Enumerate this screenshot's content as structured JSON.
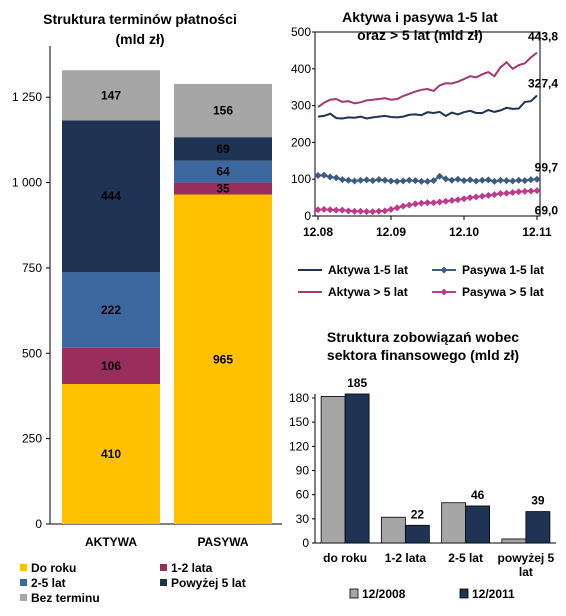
{
  "colors": {
    "do_roku": "#FFC000",
    "lata_1_2": "#9B2D5E",
    "lata_2_5": "#3D689F",
    "powyzej_5": "#1F3354",
    "bez_terminu": "#A6A6A6",
    "aktywa_1_5": "#1F3354",
    "pasywa_1_5": "#3D5A80",
    "aktywa_5": "#A03A74",
    "pasywa_5": "#BF3A8A",
    "bar_2008": "#A6A6A6",
    "bar_2011": "#1F3354"
  },
  "chart_data": [
    {
      "type": "bar",
      "stacked": true,
      "title": "Struktura terminów płatności",
      "subtitle": "(mld zł)",
      "categories": [
        "AKTYWA",
        "PASYWA"
      ],
      "ylim": [
        0,
        1400
      ],
      "yticks": [
        0,
        250,
        500,
        750,
        1000,
        1250
      ],
      "ytick_labels": [
        "0",
        "250",
        "500",
        "750",
        "1 000",
        "1 250"
      ],
      "series": [
        {
          "name": "Do roku",
          "color_key": "do_roku",
          "values": [
            410,
            965
          ]
        },
        {
          "name": "1-2 lata",
          "color_key": "lata_1_2",
          "values": [
            106,
            35
          ]
        },
        {
          "name": "2-5 lat",
          "color_key": "lata_2_5",
          "values": [
            222,
            64
          ]
        },
        {
          "name": "Powyżej 5 lat",
          "color_key": "powyzej_5",
          "values": [
            444,
            69
          ]
        },
        {
          "name": "Bez terminu",
          "color_key": "bez_terminu",
          "values": [
            147,
            156
          ]
        }
      ],
      "legend_position": "bottom"
    },
    {
      "type": "line",
      "title": "Aktywa i pasywa 1-5 lat",
      "subtitle": "oraz > 5 lat (mld zł)",
      "ylim": [
        0,
        500
      ],
      "yticks": [
        0,
        100,
        200,
        300,
        400,
        500
      ],
      "x_tick_labels": [
        "12.08",
        "12.09",
        "12.10",
        "12.11"
      ],
      "n_points": 37,
      "series": [
        {
          "name": "Aktywa 1-5 lat",
          "color_key": "aktywa_1_5",
          "marker": "none",
          "values": [
            270,
            272,
            278,
            266,
            265,
            268,
            267,
            270,
            265,
            268,
            270,
            272,
            269,
            268,
            270,
            275,
            276,
            274,
            282,
            280,
            283,
            272,
            281,
            276,
            282,
            286,
            280,
            280,
            288,
            283,
            287,
            294,
            291,
            292,
            310,
            312,
            327.4
          ],
          "end_label": "327,4"
        },
        {
          "name": "Pasywa 1-5 lat",
          "color_key": "pasywa_1_5",
          "marker": "diamond",
          "values": [
            110,
            111,
            106,
            104,
            99,
            97,
            95,
            97,
            98,
            96,
            99,
            97,
            95,
            94,
            95,
            97,
            96,
            94,
            94,
            96,
            108,
            101,
            97,
            100,
            96,
            98,
            95,
            97,
            98,
            94,
            97,
            96,
            95,
            97,
            96,
            99,
            99.7
          ],
          "end_label": "99,7"
        },
        {
          "name": "Aktywa > 5 lat",
          "color_key": "aktywa_5",
          "marker": "none",
          "values": [
            296,
            308,
            316,
            318,
            310,
            312,
            306,
            309,
            314,
            316,
            318,
            320,
            316,
            318,
            326,
            332,
            338,
            343,
            345,
            340,
            355,
            361,
            360,
            365,
            372,
            380,
            377,
            385,
            391,
            380,
            404,
            418,
            400,
            410,
            415,
            431,
            443.8
          ],
          "end_label": "443,8"
        },
        {
          "name": "Pasywa > 5 lat",
          "color_key": "pasywa_5",
          "marker": "diamond",
          "values": [
            17,
            18,
            17,
            16,
            16,
            14,
            13,
            13,
            12,
            12,
            13,
            14,
            18,
            22,
            27,
            30,
            33,
            35,
            36,
            36,
            38,
            40,
            42,
            44,
            47,
            50,
            52,
            54,
            56,
            58,
            61,
            62,
            64,
            66,
            67,
            68,
            69.0
          ],
          "end_label": "69,0"
        }
      ],
      "legend_position": "bottom"
    },
    {
      "type": "bar",
      "title": "Struktura zobowiązań wobec",
      "subtitle": "sektora finansowego (mld zł)",
      "categories": [
        "do roku",
        "1-2 lata",
        "2-5 lat",
        "powyżej 5 lat"
      ],
      "ylim": [
        0,
        180
      ],
      "yticks": [
        0,
        30,
        60,
        90,
        120,
        150,
        180
      ],
      "series": [
        {
          "name": "12/2008",
          "color_key": "bar_2008",
          "values": [
            182,
            32,
            50,
            5
          ]
        },
        {
          "name": "12/2011",
          "color_key": "bar_2011",
          "values": [
            185,
            22,
            46,
            39
          ]
        }
      ],
      "data_labels": [
        "185",
        "22",
        "46",
        "39"
      ],
      "legend_position": "bottom"
    }
  ]
}
